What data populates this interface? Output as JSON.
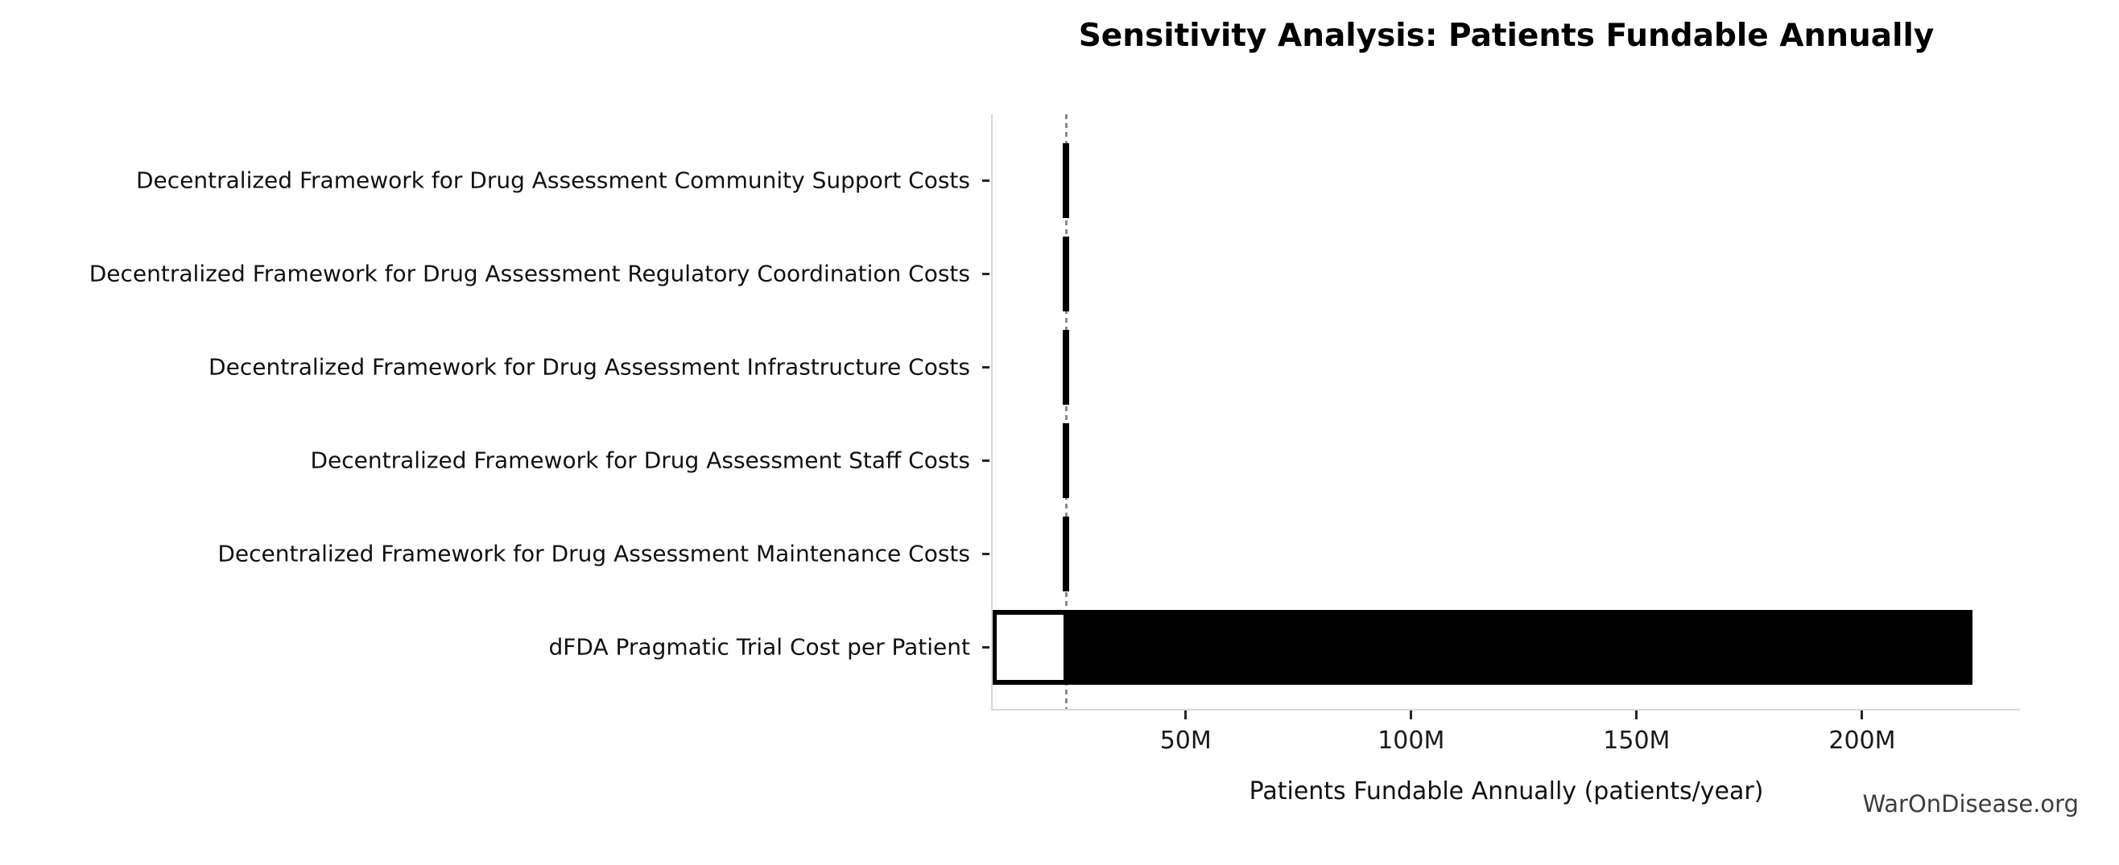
{
  "title": "Sensitivity Analysis: Patients Fundable Annually",
  "watermark": "WarOnDisease.org",
  "chart_data": {
    "type": "bar",
    "orientation": "horizontal",
    "title": "Sensitivity Analysis: Patients Fundable Annually",
    "xlabel": "Patients Fundable Annually (patients/year)",
    "ylabel": "",
    "units": "million patients/year",
    "grid": false,
    "legend": null,
    "xlim": [
      7.2,
      235
    ],
    "x_ticks": [
      {
        "value": 50,
        "label": "50M"
      },
      {
        "value": 100,
        "label": "100M"
      },
      {
        "value": 150,
        "label": "150M"
      },
      {
        "value": 200,
        "label": "200M"
      }
    ],
    "baseline": {
      "value": 23.5,
      "style": "dashed-vertical-line",
      "color": "#8a8a8a"
    },
    "rows": [
      {
        "label": "Decentralized Framework for Drug Assessment Community Support Costs",
        "low": 22.8,
        "high": 24.1,
        "style": "range"
      },
      {
        "label": "Decentralized Framework for Drug Assessment Regulatory Coordination Costs",
        "low": 22.8,
        "high": 24.1,
        "style": "range"
      },
      {
        "label": "Decentralized Framework for Drug Assessment Infrastructure Costs",
        "low": 22.8,
        "high": 24.1,
        "style": "range"
      },
      {
        "label": "Decentralized Framework for Drug Assessment Staff Costs",
        "low": 22.8,
        "high": 24.1,
        "style": "range"
      },
      {
        "label": "Decentralized Framework for Drug Assessment Maintenance Costs",
        "low": 22.8,
        "high": 24.1,
        "style": "range"
      },
      {
        "label": "dFDA Pragmatic Trial Cost per Patient",
        "low": 7.2,
        "high": 224.5,
        "style": "two_tone",
        "low_segment_clipped_at_axis": true
      }
    ],
    "colors": {
      "bar": "#000000",
      "low_segment_fill": "#ffffff",
      "baseline_line": "#8a8a8a",
      "spine": "#d9d9d9",
      "tick": "#262626",
      "text": "#000000",
      "watermark": "#3d3d3d"
    }
  }
}
